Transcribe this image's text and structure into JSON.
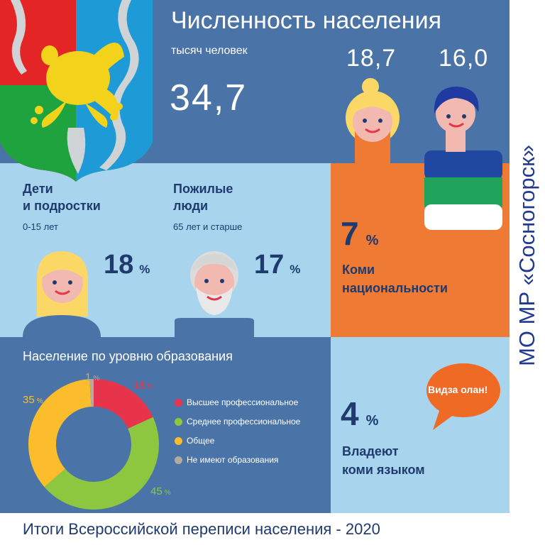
{
  "header": {
    "title": "Численность населения",
    "subtitle": "тысяч человек",
    "total": "34,7",
    "female_value": "18,7",
    "male_value": "16,0"
  },
  "children": {
    "title_line1": "Дети",
    "title_line2": "и подростки",
    "age": "0-15 лет",
    "percent": "18",
    "percent_sign": "%"
  },
  "elderly": {
    "title_line1": "Пожилые",
    "title_line2": "люди",
    "age": "65 лет и старше",
    "percent": "17",
    "percent_sign": "%"
  },
  "komi": {
    "percent": "7",
    "percent_sign": "%",
    "label_line1": "Коми",
    "label_line2": "национальности"
  },
  "language": {
    "percent": "4",
    "percent_sign": "%",
    "label_line1": "Владеют",
    "label_line2": "коми языком",
    "bubble_text": "Видза олан!"
  },
  "side_title": "МО МР «Сосногорск»",
  "footer": "Итоги Всероссийской переписи населения - 2020",
  "colors": {
    "top_panel": "#4a74a8",
    "light_panel": "#a8d4ee",
    "orange_panel": "#ef7a33",
    "higher": "#e8344a",
    "secondary": "#8dc63f",
    "general": "#fbbd2c",
    "none": "#b3aba0"
  },
  "chart_data": {
    "type": "pie",
    "title": "Население по уровню образования",
    "categories": [
      "Высшее профессиональное",
      "Среднее профессиональное",
      "Общее",
      "Не имеют образования"
    ],
    "values": [
      18,
      45,
      35,
      1
    ],
    "labels": [
      "18 %",
      "45 %",
      "35 %",
      "1 %"
    ],
    "colors": [
      "#e8344a",
      "#8dc63f",
      "#fbbd2c",
      "#b3aba0"
    ]
  }
}
